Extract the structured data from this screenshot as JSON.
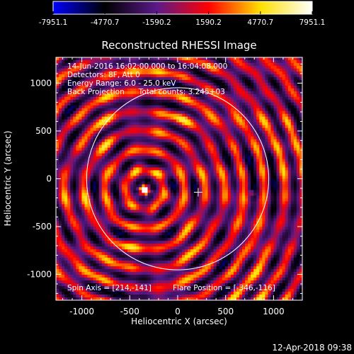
{
  "colorbar": {
    "ticks": [
      "-7951.1",
      "-4770.7",
      "-1590.2",
      "1590.2",
      "4770.7",
      "7951.1"
    ],
    "range": [
      -7951.1,
      7951.1
    ],
    "stops": [
      "#0000ff",
      "#000000",
      "#5a1a8a",
      "#ff0000",
      "#ffe000",
      "#ffffff"
    ]
  },
  "title": "Reconstructed RHESSI Image",
  "info_lines": [
    "14-Jun-2016 16:02:00.000 to 16:04:08.000",
    "Detectors: 8F, Att 0",
    "Energy Range: 6.0 - 25.0 keV",
    "Back Projection      Total counts: 3.245+03"
  ],
  "footer_left": "Spin Axis = [214,-141]",
  "footer_right": "Flare Position = [-346,-116]",
  "timestamp": "12-Apr-2018 09:38",
  "chart_data": {
    "type": "heatmap",
    "title": "Reconstructed RHESSI Image",
    "xlabel": "Heliocentric X (arcsec)",
    "ylabel": "Heliocentric Y (arcsec)",
    "xlim": [
      -1270,
      1300
    ],
    "ylim": [
      -1270,
      1270
    ],
    "xticks": [
      -1000,
      -500,
      0,
      500,
      1000
    ],
    "yticks": [
      -1000,
      -500,
      0,
      500,
      1000
    ],
    "xtick_labels": [
      "-1000",
      "-500",
      "0",
      "500",
      "1000"
    ],
    "ytick_labels": [
      "-1000",
      "-500",
      "0",
      "500",
      "1000"
    ],
    "solar_limb": {
      "center": [
        0,
        0
      ],
      "radius_arcsec": 950
    },
    "spin_axis": [
      214,
      -141
    ],
    "flare_position": [
      -346,
      -116
    ],
    "secondary_source": [
      780,
      -150
    ],
    "value_range": [
      -7951.1,
      7951.1
    ]
  }
}
